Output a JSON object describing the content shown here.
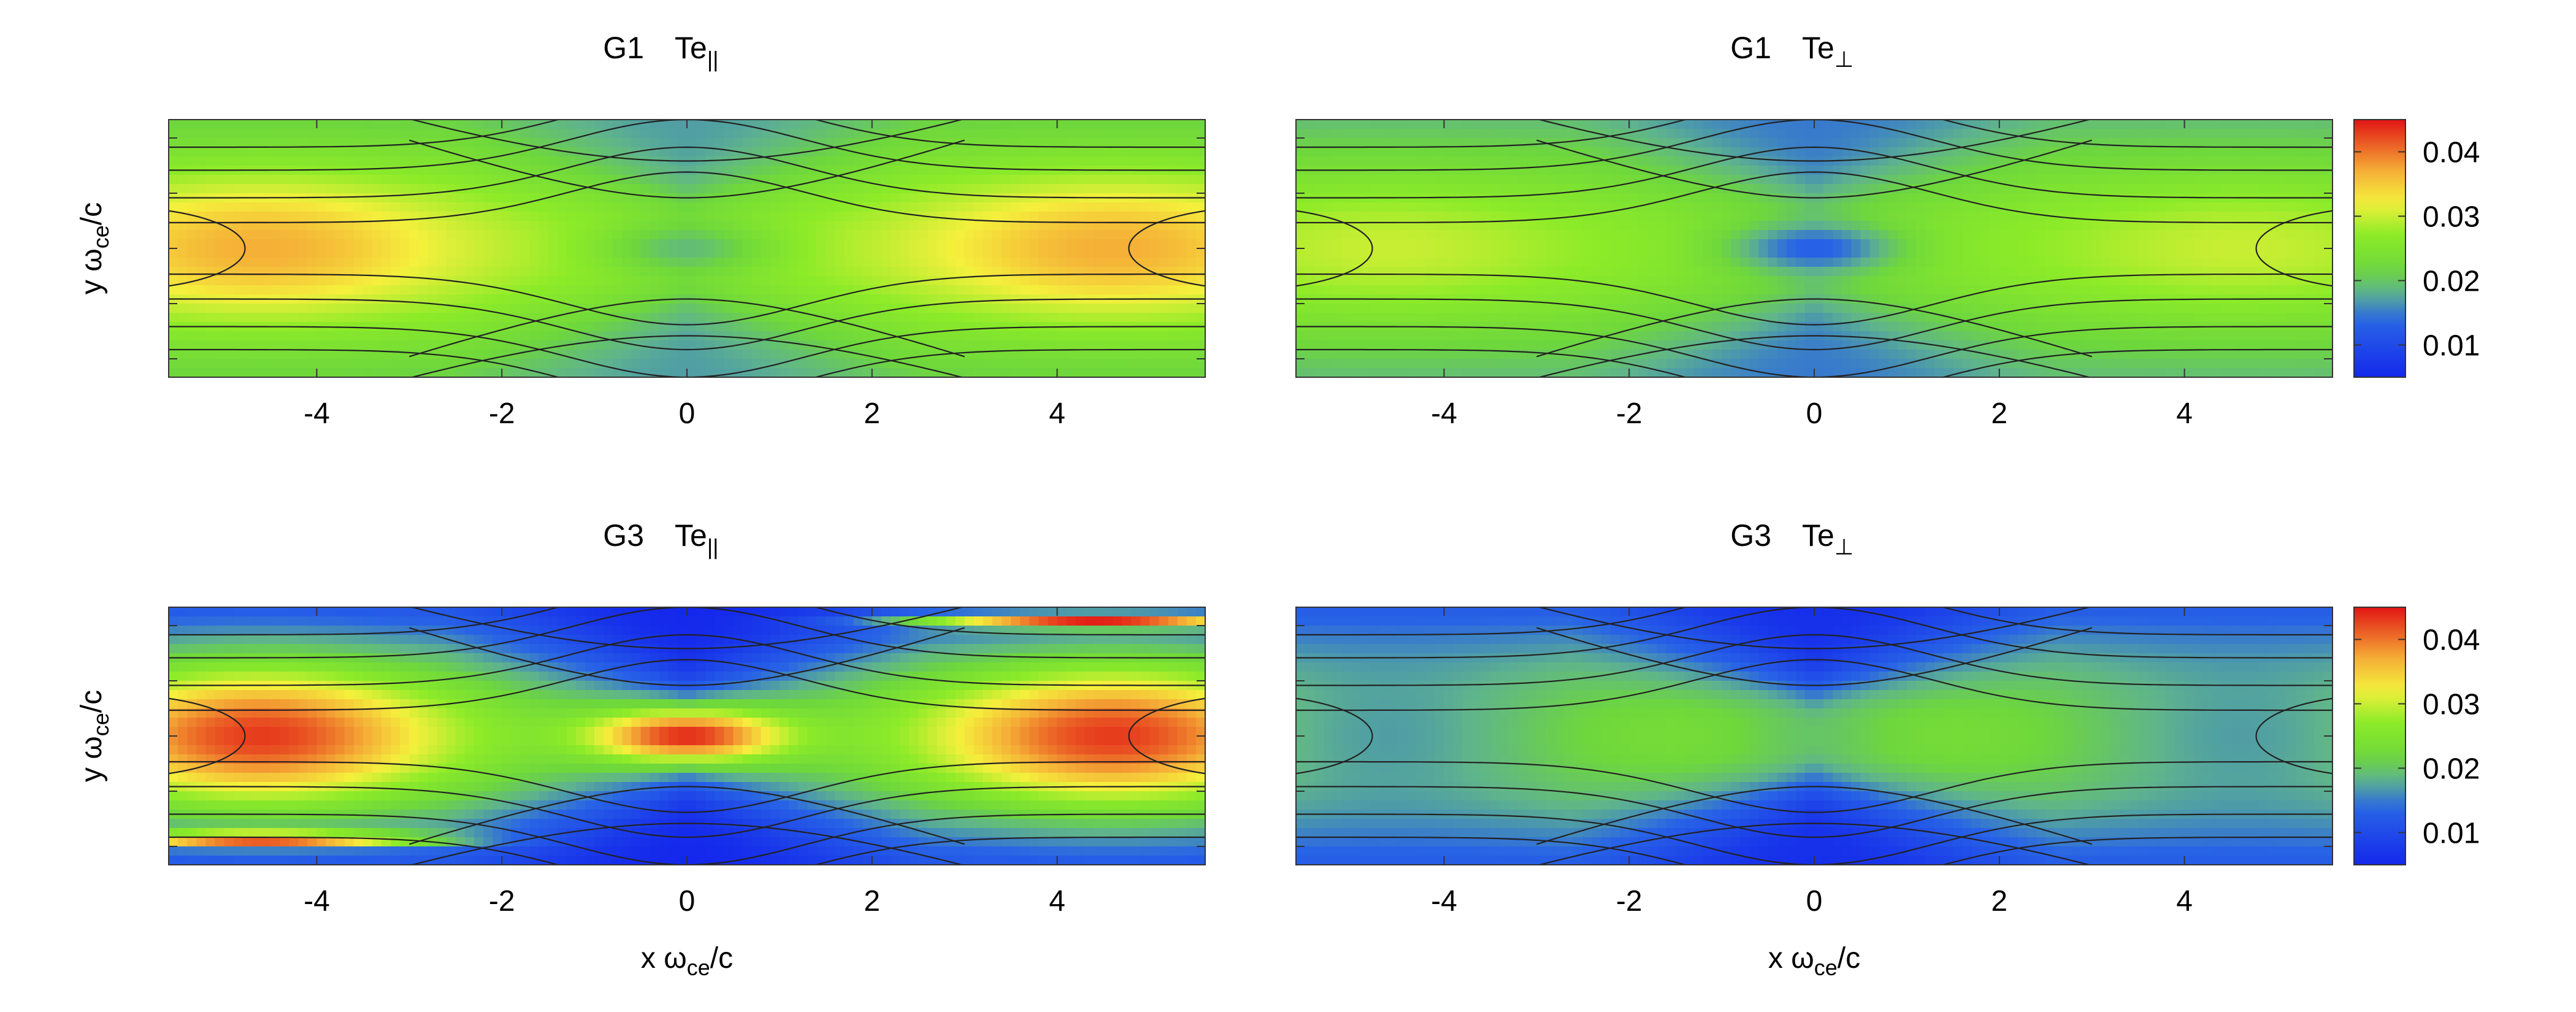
{
  "colorbar_ticks": [
    "0.04",
    "0.03",
    "0.02",
    "0.01"
  ],
  "chart_data": [
    {
      "type": "heatmap",
      "title_run": "G1",
      "title_quantity": "Te",
      "title_subscript": "||",
      "xlabel": "",
      "ylabel_main": "y ω",
      "ylabel_sub": "ce",
      "ylabel_tail": "/c",
      "xlim": [
        -5.6,
        5.6
      ],
      "ylim": [
        -1.4,
        1.4
      ],
      "x_ticks": [
        -4,
        -2,
        0,
        2,
        4
      ],
      "x_tick_labels": [
        "-4",
        "-2",
        "0",
        "2",
        "4"
      ],
      "colorbar": false,
      "field": {
        "core": 0.037,
        "sheet": 0.028,
        "lobe": 0.017,
        "xpoint": 0.019,
        "bands": false
      }
    },
    {
      "type": "heatmap",
      "title_run": "G1",
      "title_quantity": "Te",
      "title_subscript": "⊥",
      "xlabel": "",
      "xlim": [
        -5.6,
        5.6
      ],
      "ylim": [
        -1.4,
        1.4
      ],
      "x_ticks": [
        -4,
        -2,
        0,
        2,
        4
      ],
      "x_tick_labels": [
        "-4",
        "-2",
        "0",
        "2",
        "4"
      ],
      "colorbar": true,
      "color_range": [
        0.005,
        0.045
      ],
      "field": {
        "core": 0.03,
        "sheet": 0.026,
        "lobe": 0.015,
        "xpoint": 0.013,
        "bands": false
      }
    },
    {
      "type": "heatmap",
      "title_run": "G3",
      "title_quantity": "Te",
      "title_subscript": "||",
      "xlabel_main": "x ω",
      "xlabel_sub": "ce",
      "xlabel_tail": "/c",
      "ylabel_main": "y ω",
      "ylabel_sub": "ce",
      "ylabel_tail": "/c",
      "xlim": [
        -5.6,
        5.6
      ],
      "ylim": [
        -1.4,
        1.4
      ],
      "x_ticks": [
        -4,
        -2,
        0,
        2,
        4
      ],
      "x_tick_labels": [
        "-4",
        "-2",
        "0",
        "2",
        "4"
      ],
      "colorbar": false,
      "field": {
        "core": 0.043,
        "sheet": 0.022,
        "lobe": 0.005,
        "xpoint": 0.044,
        "bands": true
      }
    },
    {
      "type": "heatmap",
      "title_run": "G3",
      "title_quantity": "Te",
      "title_subscript": "⊥",
      "xlabel_main": "x ω",
      "xlabel_sub": "ce",
      "xlabel_tail": "/c",
      "xlim": [
        -5.6,
        5.6
      ],
      "ylim": [
        -1.4,
        1.4
      ],
      "x_ticks": [
        -4,
        -2,
        0,
        2,
        4
      ],
      "x_tick_labels": [
        "-4",
        "-2",
        "0",
        "2",
        "4"
      ],
      "colorbar": true,
      "color_range": [
        0.005,
        0.045
      ],
      "field": {
        "core": 0.017,
        "sheet": 0.024,
        "lobe": 0.006,
        "xpoint": 0.02,
        "bands": false
      }
    }
  ]
}
